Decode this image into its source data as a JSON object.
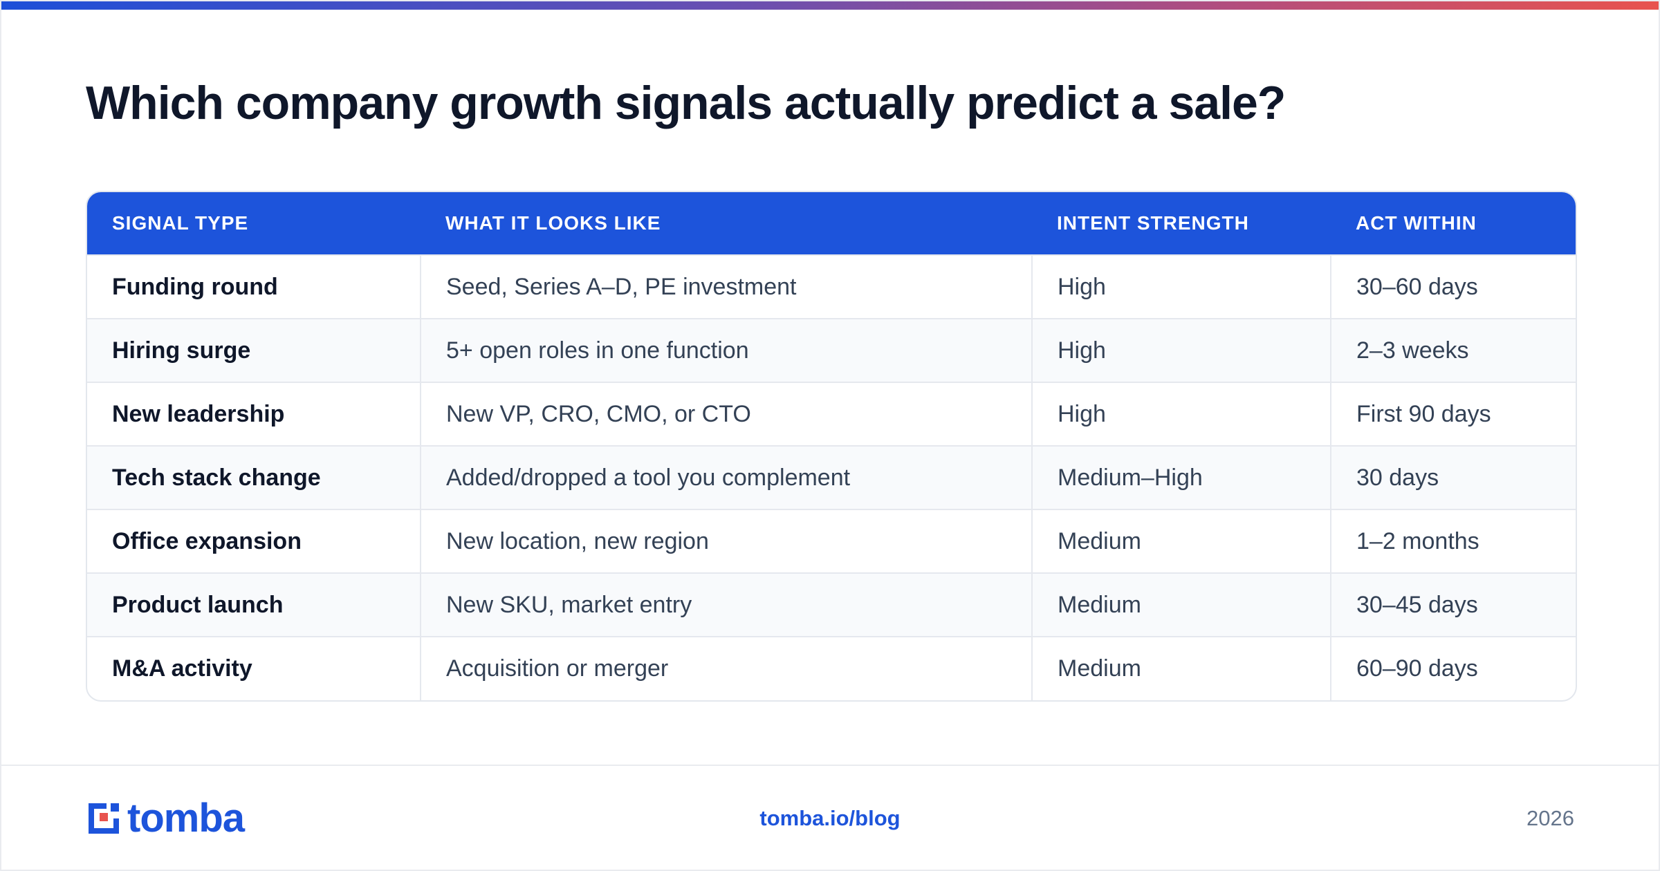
{
  "title": "Which company growth signals actually predict a sale?",
  "table": {
    "headers": [
      "SIGNAL TYPE",
      "WHAT IT LOOKS LIKE",
      "INTENT STRENGTH",
      "ACT WITHIN"
    ],
    "rows": [
      [
        "Funding round",
        "Seed, Series A–D, PE investment",
        "High",
        "30–60 days"
      ],
      [
        "Hiring surge",
        "5+ open roles in one function",
        "High",
        "2–3 weeks"
      ],
      [
        "New leadership",
        "New VP, CRO, CMO, or CTO",
        "High",
        "First 90 days"
      ],
      [
        "Tech stack change",
        "Added/dropped a tool you complement",
        "Medium–High",
        "30 days"
      ],
      [
        "Office expansion",
        "New location, new region",
        "Medium",
        "1–2 months"
      ],
      [
        "Product launch",
        "New SKU, market entry",
        "Medium",
        "30–45 days"
      ],
      [
        "M&A activity",
        "Acquisition or merger",
        "Medium",
        "60–90 days"
      ]
    ]
  },
  "footer": {
    "logo_text": "tomba",
    "link": "tomba.io/blog",
    "year": "2026"
  },
  "colors": {
    "brand_blue": "#1d54db",
    "title_text": "#0f172a",
    "body_text": "#334155",
    "accent_red": "#e8534e"
  }
}
